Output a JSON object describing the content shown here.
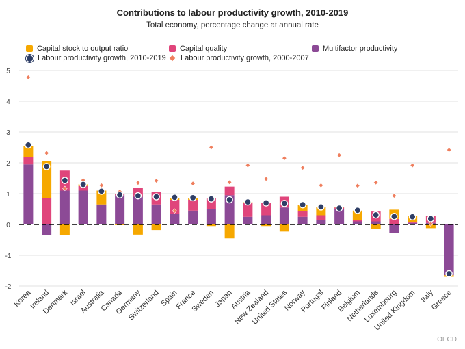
{
  "title": "Contributions to labour productivity growth, 2010-2019",
  "subtitle": "Total economy, percentage change at annual rate",
  "source": "OECD",
  "legend": {
    "capital_stock": "Capital stock to output ratio",
    "capital_quality": "Capital quality",
    "multifactor": "Multifactor productivity",
    "lp_2010": "Labour productivity growth, 2010-2019",
    "lp_2000": "Labour productivity growth, 2000-2007"
  },
  "colors": {
    "capital_stock": "#f6a800",
    "capital_quality": "#e0457b",
    "multifactor": "#8c4a96",
    "lp_2010": "#2e3e66",
    "lp_2000": "#ef7e5d"
  },
  "chart_data": {
    "type": "bar",
    "ylim": [
      -2,
      5
    ],
    "yticks": [
      -2,
      -1,
      0,
      1,
      2,
      3,
      4,
      5
    ],
    "grid": true,
    "categories": [
      "Korea",
      "Ireland",
      "Denmark",
      "Israel",
      "Australia",
      "Canada",
      "Germany",
      "Switzerland",
      "Spain",
      "France",
      "Sweden",
      "Japan",
      "Austria",
      "New Zealand",
      "United States",
      "Norway",
      "Portugal",
      "Finland",
      "Belgium",
      "Netherlands",
      "Luxembourg",
      "United Kingdom",
      "Italy",
      "Greece"
    ],
    "series": [
      {
        "name": "Multifactor productivity",
        "values": [
          1.95,
          -0.35,
          1.1,
          1.1,
          0.65,
          0.95,
          0.9,
          0.65,
          0.35,
          0.45,
          0.5,
          0.95,
          0.25,
          0.3,
          0.55,
          0.25,
          0.15,
          0.5,
          0.1,
          0.1,
          -0.28,
          0.05,
          0.05,
          -1.65
        ]
      },
      {
        "name": "Capital quality",
        "values": [
          0.23,
          0.85,
          0.65,
          0.15,
          0.0,
          0.05,
          0.3,
          0.4,
          0.45,
          0.35,
          0.35,
          0.28,
          0.45,
          0.4,
          0.35,
          0.18,
          0.15,
          0.05,
          0.05,
          0.32,
          0.18,
          0.03,
          0.23,
          0.0
        ]
      },
      {
        "name": "Capital stock to output ratio",
        "values": [
          0.37,
          1.2,
          -0.35,
          0.05,
          0.45,
          -0.02,
          -0.33,
          -0.18,
          0.05,
          0.05,
          -0.05,
          -0.45,
          0.02,
          -0.05,
          -0.23,
          0.2,
          0.27,
          0.02,
          0.3,
          -0.15,
          0.3,
          0.2,
          -0.12,
          -0.05
        ]
      },
      {
        "name": "Labour productivity growth, 2010-2019",
        "values": [
          2.58,
          1.88,
          1.43,
          1.3,
          1.08,
          0.96,
          0.93,
          0.9,
          0.88,
          0.87,
          0.83,
          0.8,
          0.73,
          0.7,
          0.68,
          0.64,
          0.57,
          0.53,
          0.46,
          0.31,
          0.26,
          0.25,
          0.19,
          -1.6
        ]
      },
      {
        "name": "Labour productivity growth, 2000-2007",
        "values": [
          4.78,
          2.32,
          1.17,
          1.44,
          1.27,
          1.07,
          1.35,
          1.42,
          0.44,
          1.33,
          2.5,
          1.37,
          1.92,
          1.48,
          2.15,
          1.84,
          1.27,
          2.25,
          1.26,
          1.36,
          0.93,
          1.92,
          0.02,
          2.42
        ]
      }
    ]
  }
}
